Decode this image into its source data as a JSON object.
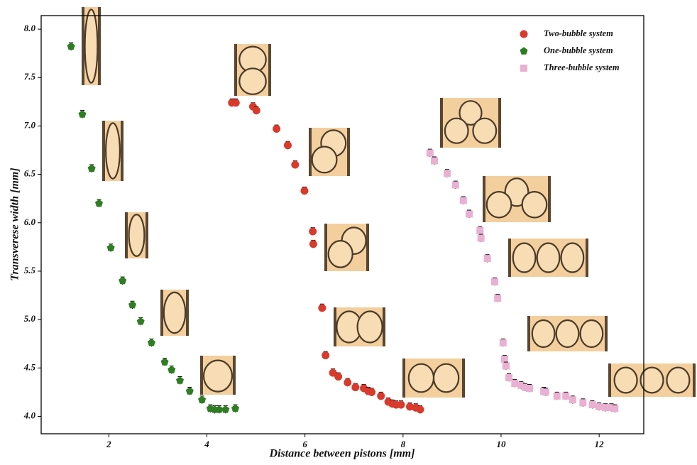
{
  "chart_data": {
    "type": "scatter",
    "xlabel": "Distance between pistons [mm]",
    "ylabel": "Transverese width [mm]",
    "xlim": [
      0.62,
      12.91
    ],
    "ylim": [
      3.82,
      8.14
    ],
    "xticks": [
      2,
      4,
      6,
      8,
      10,
      12
    ],
    "yticks": [
      {
        "value": 4,
        "label": "4.0"
      },
      4.5,
      {
        "value": 5,
        "label": "5.0"
      },
      5.5,
      {
        "value": 6,
        "label": "6.0"
      },
      6.5,
      {
        "value": 7,
        "label": "7.0"
      },
      7.5,
      {
        "value": 8,
        "label": "8.0"
      }
    ],
    "legend": "upper right",
    "series": [
      {
        "name": "Two-bubble system",
        "color": "#d83a2b",
        "marker": "circle",
        "error": 0.04,
        "x": [
          4.51,
          4.59,
          4.94,
          5.01,
          5.42,
          5.65,
          5.8,
          5.99,
          6.16,
          6.17,
          6.35,
          6.42,
          6.57,
          6.68,
          6.87,
          7.03,
          7.2,
          7.29,
          7.36,
          7.55,
          7.7,
          7.78,
          7.86,
          7.96,
          8.14,
          8.26,
          8.35
        ],
        "values": [
          7.24,
          7.24,
          7.2,
          7.16,
          6.97,
          6.8,
          6.6,
          6.33,
          5.91,
          5.78,
          5.12,
          4.63,
          4.45,
          4.41,
          4.35,
          4.3,
          4.29,
          4.26,
          4.25,
          4.21,
          4.15,
          4.13,
          4.12,
          4.12,
          4.1,
          4.09,
          4.07
        ]
      },
      {
        "name": "One-bubble system",
        "color": "#2f7d22",
        "marker": "pentagon",
        "error": 0.04,
        "x": [
          1.23,
          1.46,
          1.65,
          1.8,
          2.04,
          2.28,
          2.48,
          2.65,
          2.87,
          3.14,
          3.28,
          3.45,
          3.65,
          3.9,
          4.07,
          4.16,
          4.25,
          4.38,
          4.58
        ],
        "values": [
          7.82,
          7.12,
          6.56,
          6.2,
          5.74,
          5.4,
          5.15,
          4.98,
          4.76,
          4.56,
          4.48,
          4.37,
          4.26,
          4.17,
          4.08,
          4.07,
          4.07,
          4.07,
          4.08
        ]
      },
      {
        "name": "Three-bubble system",
        "color": "#eab0d2",
        "marker": "square",
        "error": 0.04,
        "x": [
          8.55,
          8.64,
          8.9,
          9.07,
          9.23,
          9.35,
          9.57,
          9.59,
          9.72,
          9.87,
          9.93,
          10.04,
          10.07,
          10.1,
          10.16,
          10.28,
          10.41,
          10.49,
          10.58,
          10.87,
          10.91,
          11.14,
          11.32,
          11.46,
          11.67,
          11.86,
          12.0,
          12.13,
          12.25,
          12.32
        ],
        "values": [
          6.72,
          6.64,
          6.51,
          6.39,
          6.23,
          6.09,
          5.92,
          5.84,
          5.63,
          5.39,
          5.22,
          4.76,
          4.59,
          4.52,
          4.4,
          4.34,
          4.32,
          4.3,
          4.29,
          4.26,
          4.25,
          4.21,
          4.21,
          4.17,
          4.14,
          4.12,
          4.1,
          4.09,
          4.09,
          4.08
        ]
      }
    ]
  }
}
